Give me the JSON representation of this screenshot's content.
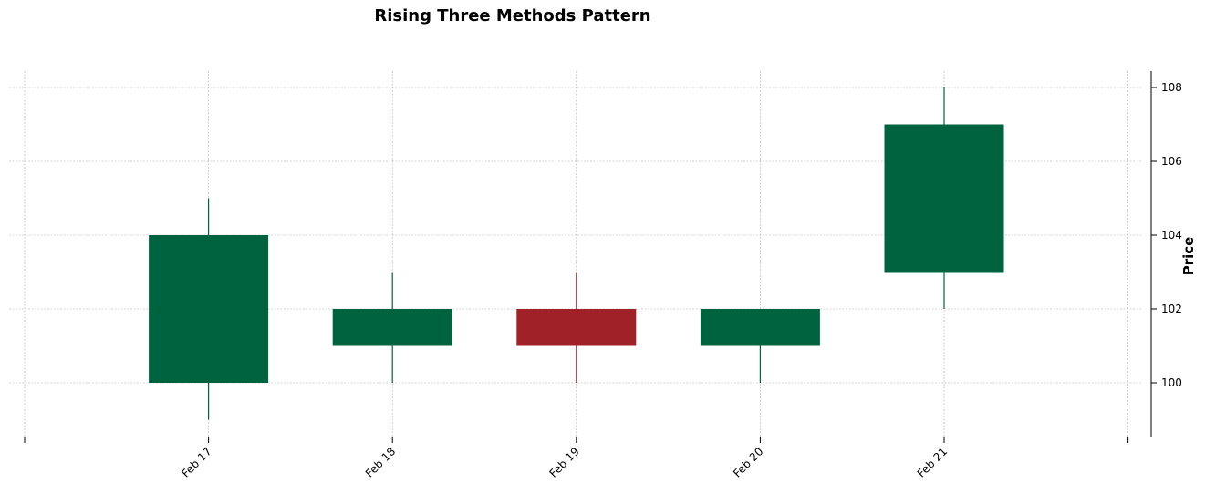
{
  "chart_data": {
    "type": "candlestick",
    "title": "Rising Three Methods Pattern",
    "xlabel": "",
    "ylabel": "Price",
    "categories": [
      "Feb 17",
      "Feb 18",
      "Feb 19",
      "Feb 20",
      "Feb 21"
    ],
    "candles": [
      {
        "date": "Feb 17",
        "open": 100,
        "high": 105,
        "low": 99,
        "close": 104
      },
      {
        "date": "Feb 18",
        "open": 101,
        "high": 103,
        "low": 100,
        "close": 102
      },
      {
        "date": "Feb 19",
        "open": 102,
        "high": 103,
        "low": 100,
        "close": 101
      },
      {
        "date": "Feb 20",
        "open": 101,
        "high": 102,
        "low": 100,
        "close": 102
      },
      {
        "date": "Feb 21",
        "open": 103,
        "high": 108,
        "low": 102,
        "close": 107
      }
    ],
    "yticks": [
      100,
      102,
      104,
      106,
      108
    ],
    "ylim": [
      98.5,
      108.4
    ],
    "grid": true,
    "y_axis_side": "right",
    "colors": {
      "up": "#006340",
      "down": "#a02128",
      "grid": "#b0b0b0"
    }
  }
}
